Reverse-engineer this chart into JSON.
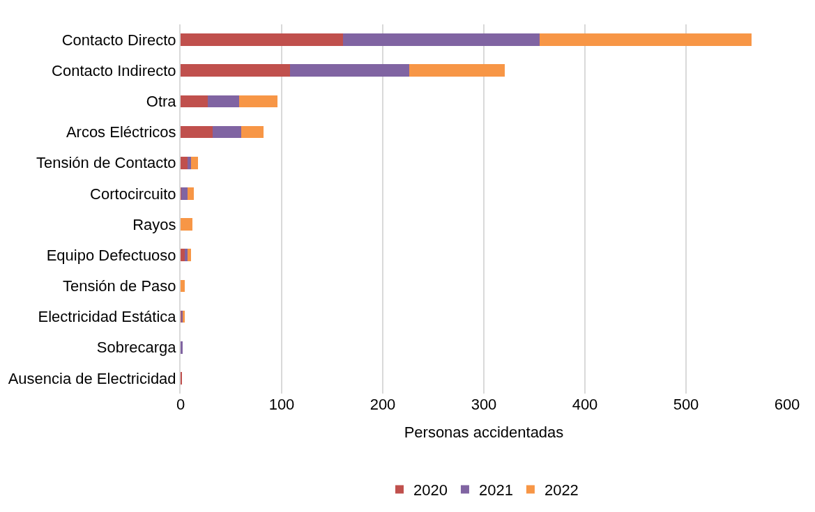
{
  "chart_data": {
    "type": "bar",
    "orientation": "horizontal",
    "stacked": true,
    "xlabel": "Personas accidentadas",
    "categories": [
      "Contacto Directo",
      "Contacto Indirecto",
      "Otra",
      "Arcos Eléctricos",
      "Tensión de Contacto",
      "Cortocircuito",
      "Rayos",
      "Equipo Defectuoso",
      "Tensión de Paso",
      "Electricidad Estática",
      "Sobrecarga",
      "Ausencia de Electricidad"
    ],
    "series": [
      {
        "name": "2020",
        "color": "#c0504d",
        "values": [
          161,
          108,
          27,
          32,
          7,
          1,
          0,
          4,
          0,
          1,
          0,
          1
        ]
      },
      {
        "name": "2021",
        "color": "#8064a2",
        "values": [
          194,
          118,
          31,
          28,
          3,
          6,
          0,
          3,
          0,
          1,
          2,
          0
        ]
      },
      {
        "name": "2022",
        "color": "#f79646",
        "values": [
          210,
          95,
          38,
          22,
          7,
          6,
          12,
          3,
          4,
          2,
          0,
          0
        ]
      }
    ],
    "xlim": [
      0,
      600
    ],
    "xticks": [
      0,
      100,
      200,
      300,
      400,
      500,
      600
    ],
    "grid": "x",
    "legend": "bottom"
  }
}
